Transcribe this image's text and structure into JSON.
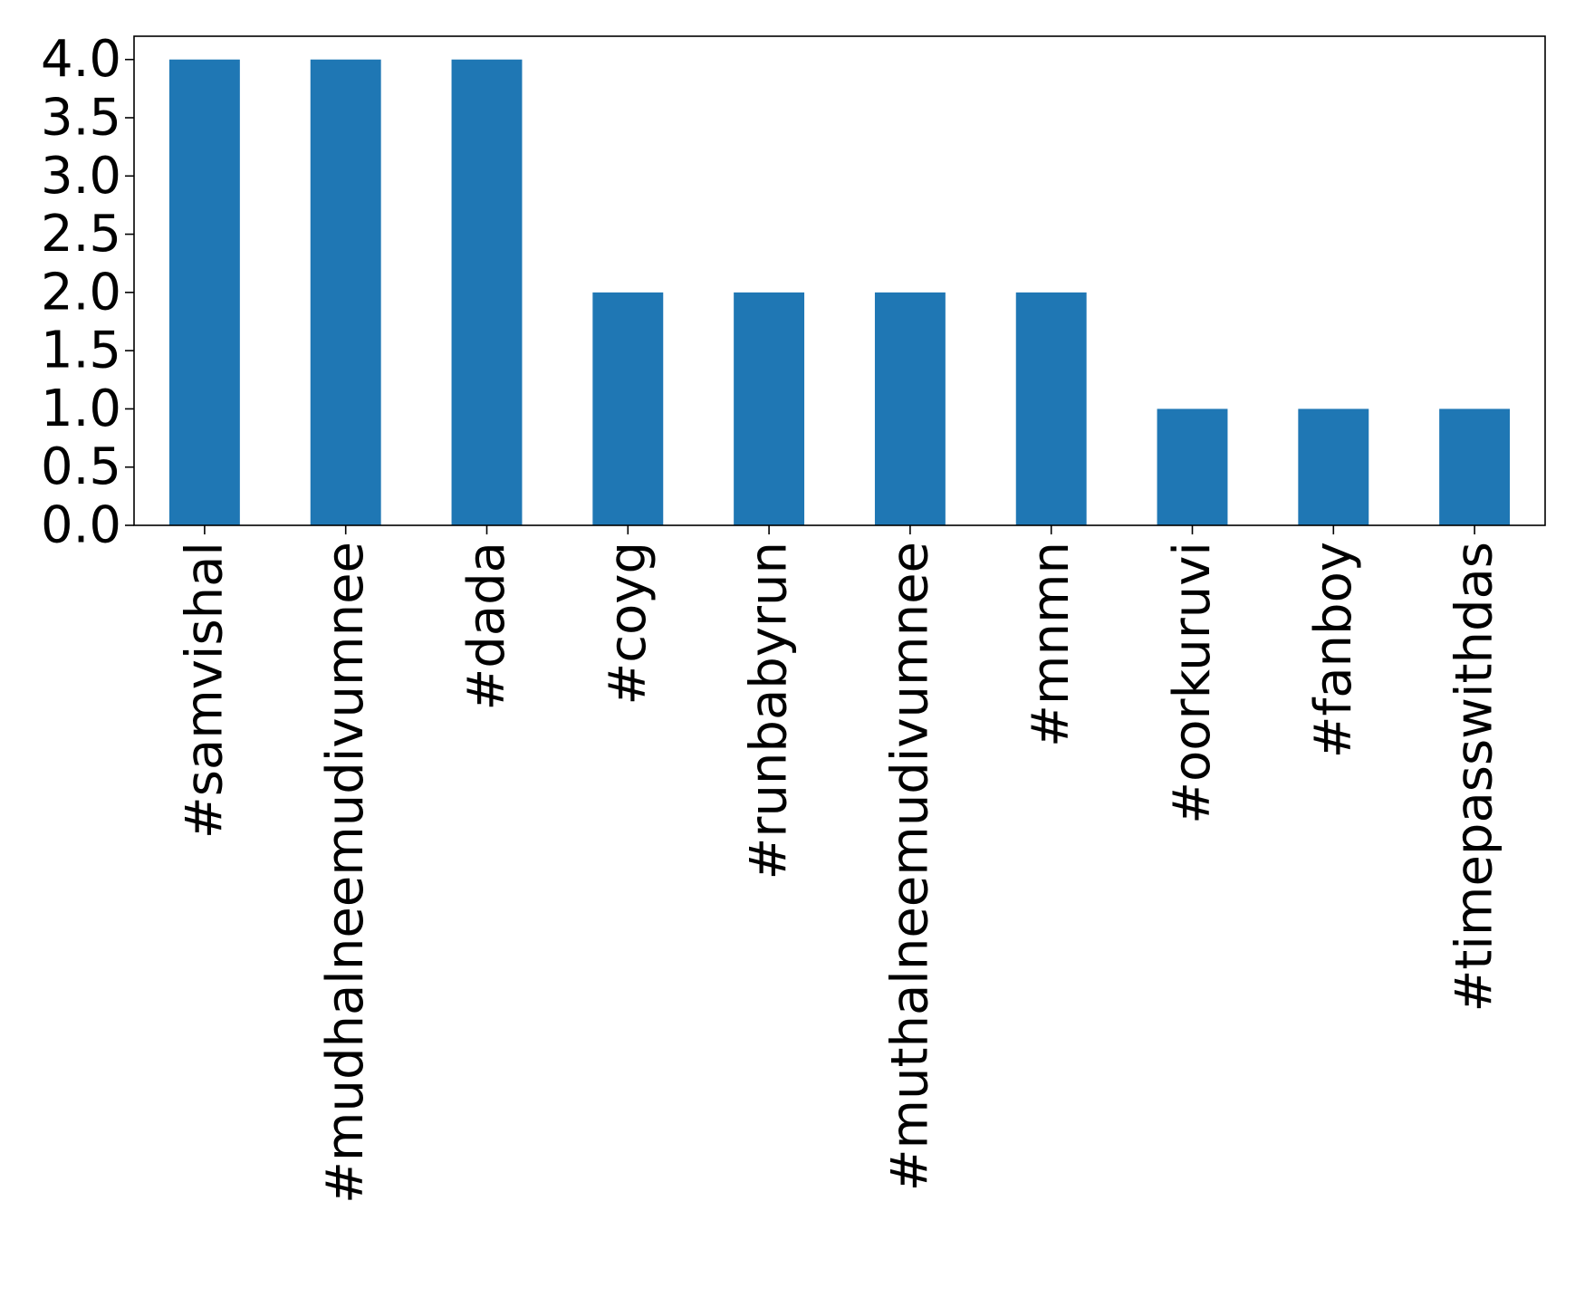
{
  "chart_data": {
    "type": "bar",
    "categories": [
      "#samvishal",
      "#mudhalneemudivumnee",
      "#dada",
      "#coyg",
      "#runbabyrun",
      "#muthalneemudivumnee",
      "#mnmn",
      "#oorkuruvi",
      "#fanboy",
      "#timepasswithdas"
    ],
    "values": [
      4,
      4,
      4,
      2,
      2,
      2,
      2,
      1,
      1,
      1
    ],
    "title": "",
    "xlabel": "",
    "ylabel": "",
    "ylim": [
      0,
      4.2
    ],
    "yticks": [
      "0.0",
      "0.5",
      "1.0",
      "1.5",
      "2.0",
      "2.5",
      "3.0",
      "3.5",
      "4.0"
    ],
    "grid": false,
    "legend": "none",
    "bar_color": "#1f77b4"
  }
}
